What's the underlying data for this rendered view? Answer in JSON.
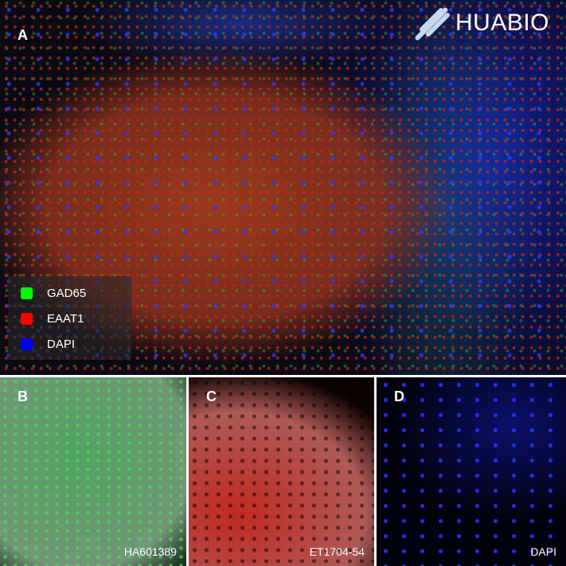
{
  "panels": {
    "A": {
      "label": "A"
    },
    "B": {
      "label": "B",
      "antibody": "HA601389"
    },
    "C": {
      "label": "C",
      "antibody": "ET1704-54"
    },
    "D": {
      "label": "D",
      "antibody": "DAPI"
    }
  },
  "legend": [
    {
      "label": "GAD65",
      "color": "#00ff00"
    },
    {
      "label": "EAAT1",
      "color": "#ff0000"
    },
    {
      "label": "DAPI",
      "color": "#0000ff"
    }
  ],
  "logo": {
    "text": "HUABIO"
  }
}
